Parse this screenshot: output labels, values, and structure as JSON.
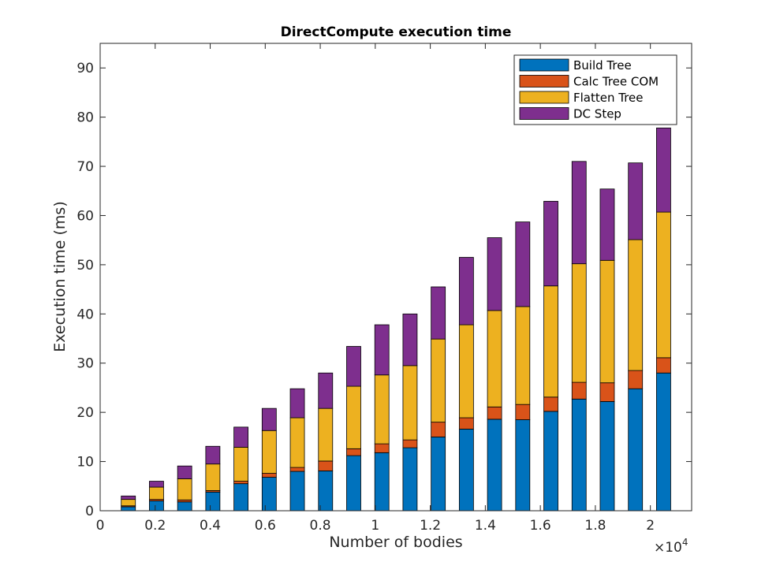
{
  "chart_data": {
    "type": "bar",
    "stacked": true,
    "title": "DirectCompute execution time",
    "xlabel": "Number of bodies",
    "ylabel": "Execution time (ms)",
    "x_exponent_label": "×10",
    "x_exponent_power": "4",
    "xlim": [
      0,
      21500
    ],
    "ylim": [
      0,
      95
    ],
    "xticks": [
      0,
      2000,
      4000,
      6000,
      8000,
      10000,
      12000,
      14000,
      16000,
      18000,
      20000
    ],
    "xtick_labels": [
      "0",
      "0.2",
      "0.4",
      "0.6",
      "0.8",
      "1",
      "1.2",
      "1.4",
      "1.6",
      "1.8",
      "2"
    ],
    "yticks": [
      0,
      10,
      20,
      30,
      40,
      50,
      60,
      70,
      80,
      90
    ],
    "ytick_labels": [
      "0",
      "10",
      "20",
      "30",
      "40",
      "50",
      "60",
      "70",
      "80",
      "90"
    ],
    "grid": false,
    "legend_position": "top-right",
    "x": [
      1024,
      2048,
      3072,
      4096,
      5120,
      6144,
      7168,
      8192,
      9216,
      10240,
      11264,
      12288,
      13312,
      14336,
      15360,
      16384,
      17408,
      18432,
      19456,
      20480
    ],
    "series": [
      {
        "name": "Build Tree",
        "color": "#0072BD",
        "values": [
          0.8,
          2.0,
          1.8,
          3.8,
          5.5,
          6.8,
          8.0,
          8.1,
          11.2,
          11.8,
          12.8,
          15.0,
          16.6,
          18.6,
          18.5,
          20.2,
          22.7,
          22.2,
          24.8,
          28.0
        ]
      },
      {
        "name": "Calc Tree COM",
        "color": "#D95319",
        "values": [
          0.2,
          0.3,
          0.4,
          0.3,
          0.5,
          0.8,
          0.8,
          2.0,
          1.4,
          1.8,
          1.6,
          3.0,
          2.3,
          2.5,
          3.1,
          2.9,
          3.4,
          3.8,
          3.7,
          3.1
        ]
      },
      {
        "name": "Flatten Tree",
        "color": "#EDB120",
        "values": [
          1.3,
          2.5,
          4.3,
          5.4,
          6.9,
          8.7,
          10.1,
          10.7,
          12.7,
          14.0,
          15.1,
          16.9,
          18.9,
          19.6,
          19.9,
          22.6,
          24.1,
          24.9,
          26.6,
          29.6
        ]
      },
      {
        "name": "DC Step",
        "color": "#7E2F8E",
        "values": [
          0.7,
          1.2,
          2.6,
          3.6,
          4.1,
          4.5,
          5.9,
          7.2,
          8.1,
          10.2,
          10.5,
          10.6,
          13.7,
          14.8,
          17.2,
          17.2,
          20.8,
          14.5,
          15.6,
          17.1
        ]
      }
    ]
  }
}
